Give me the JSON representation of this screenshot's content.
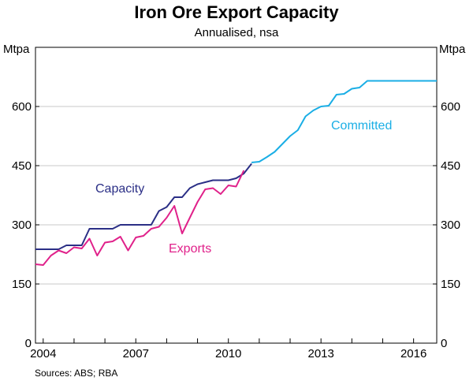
{
  "chart_data": {
    "type": "line",
    "title": "Iron Ore Export Capacity",
    "subtitle": "Annualised, nsa",
    "ylabel_left": "Mtpa",
    "ylabel_right": "Mtpa",
    "ylim": [
      0,
      750
    ],
    "yticks": [
      0,
      150,
      300,
      450,
      600
    ],
    "xlim": [
      2003.75,
      2016.75
    ],
    "xticks": [
      2004,
      2007,
      2010,
      2013,
      2016
    ],
    "xtick_labels": [
      "2004",
      "2007",
      "2010",
      "2013",
      "2016"
    ],
    "grid": true,
    "source": "Sources: ABS; RBA",
    "series": [
      {
        "name": "Capacity",
        "color": "#2b2f86",
        "points": [
          [
            2003.75,
            238
          ],
          [
            2004.0,
            238
          ],
          [
            2004.25,
            238
          ],
          [
            2004.5,
            238
          ],
          [
            2004.75,
            248
          ],
          [
            2005.0,
            248
          ],
          [
            2005.25,
            248
          ],
          [
            2005.5,
            290
          ],
          [
            2005.75,
            290
          ],
          [
            2006.0,
            290
          ],
          [
            2006.25,
            290
          ],
          [
            2006.5,
            300
          ],
          [
            2006.75,
            300
          ],
          [
            2007.0,
            300
          ],
          [
            2007.25,
            300
          ],
          [
            2007.5,
            300
          ],
          [
            2007.75,
            335
          ],
          [
            2008.0,
            345
          ],
          [
            2008.25,
            370
          ],
          [
            2008.5,
            370
          ],
          [
            2008.75,
            393
          ],
          [
            2009.0,
            403
          ],
          [
            2009.25,
            408
          ],
          [
            2009.5,
            413
          ],
          [
            2009.75,
            413
          ],
          [
            2010.0,
            413
          ],
          [
            2010.25,
            418
          ],
          [
            2010.5,
            430
          ],
          [
            2010.75,
            455
          ]
        ]
      },
      {
        "name": "Exports",
        "color": "#e0218a",
        "points": [
          [
            2003.75,
            200
          ],
          [
            2004.0,
            198
          ],
          [
            2004.25,
            222
          ],
          [
            2004.5,
            235
          ],
          [
            2004.75,
            228
          ],
          [
            2005.0,
            243
          ],
          [
            2005.25,
            240
          ],
          [
            2005.5,
            265
          ],
          [
            2005.75,
            222
          ],
          [
            2006.0,
            255
          ],
          [
            2006.25,
            258
          ],
          [
            2006.5,
            270
          ],
          [
            2006.75,
            235
          ],
          [
            2007.0,
            268
          ],
          [
            2007.25,
            272
          ],
          [
            2007.5,
            290
          ],
          [
            2007.75,
            295
          ],
          [
            2008.0,
            318
          ],
          [
            2008.25,
            348
          ],
          [
            2008.5,
            278
          ],
          [
            2008.75,
            318
          ],
          [
            2009.0,
            358
          ],
          [
            2009.25,
            390
          ],
          [
            2009.5,
            393
          ],
          [
            2009.75,
            378
          ],
          [
            2010.0,
            400
          ],
          [
            2010.25,
            397
          ],
          [
            2010.5,
            438
          ]
        ]
      },
      {
        "name": "Committed",
        "color": "#1aaee5",
        "points": [
          [
            2010.75,
            458
          ],
          [
            2011.0,
            460
          ],
          [
            2011.25,
            472
          ],
          [
            2011.5,
            485
          ],
          [
            2011.75,
            505
          ],
          [
            2012.0,
            525
          ],
          [
            2012.25,
            540
          ],
          [
            2012.5,
            575
          ],
          [
            2012.75,
            590
          ],
          [
            2013.0,
            600
          ],
          [
            2013.25,
            602
          ],
          [
            2013.5,
            630
          ],
          [
            2013.75,
            632
          ],
          [
            2014.0,
            645
          ],
          [
            2014.25,
            648
          ],
          [
            2014.5,
            665
          ],
          [
            2014.75,
            665
          ],
          [
            2015.0,
            665
          ],
          [
            2015.5,
            665
          ],
          [
            2016.0,
            665
          ],
          [
            2016.5,
            665
          ],
          [
            2016.75,
            665
          ]
        ]
      }
    ]
  }
}
